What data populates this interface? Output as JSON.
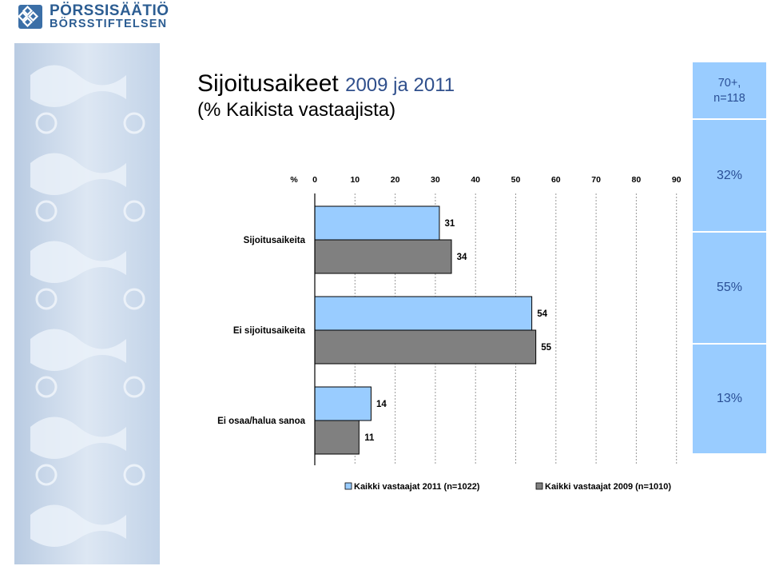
{
  "logo": {
    "line1": "PÖRSSISÄÄTIÖ",
    "line2": "BÖRSSTIFTELSEN"
  },
  "title": {
    "main": "Sijoitusaikeet",
    "years": "2009 ja 2011",
    "subtitle": "(% Kaikista vastaajista)"
  },
  "side_panel": {
    "header_line1": "70+,",
    "header_line2": "n=118",
    "values": [
      "32%",
      "55%",
      "13%"
    ]
  },
  "colors": {
    "series_2011": "#99ccff",
    "series_2009": "#808080",
    "side_panel": "#99ccff",
    "side_text": "#2a4f96",
    "title_years": "#2f4f8c",
    "logo": "#2c5d92"
  },
  "chart_data": {
    "type": "bar",
    "orientation": "horizontal",
    "axis_unit_label": "%",
    "xlim": [
      0,
      90
    ],
    "ticks": [
      0,
      10,
      20,
      30,
      40,
      50,
      60,
      70,
      80,
      90
    ],
    "grid": true,
    "legend_position": "bottom",
    "categories": [
      "Sijoitusaikeita",
      "Ei sijoitusaikeita",
      "Ei osaa/halua sanoa"
    ],
    "series": [
      {
        "name": "Kaikki vastaajat 2011 (n=1022)",
        "values": [
          31,
          54,
          14
        ]
      },
      {
        "name": "Kaikki vastaajat 2009 (n=1010)",
        "values": [
          34,
          55,
          11
        ]
      }
    ]
  }
}
